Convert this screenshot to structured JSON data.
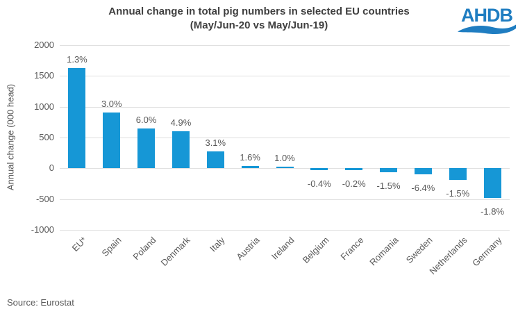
{
  "header": {
    "title_line1": "Annual change in total pig numbers in selected EU countries",
    "title_line2": "(May/Jun-20 vs May/Jun-19)",
    "logo_text": "AHDB"
  },
  "footer": {
    "source": "Source: Eurostat"
  },
  "colors": {
    "bar_blue": "#1697d6",
    "logo_blue": "#1f7dc1",
    "text_gray": "#595959",
    "title_gray": "#3f3f3f",
    "gridline_gray": "#e0e0e0"
  },
  "chart_data": {
    "type": "bar",
    "title": "Annual change in total pig numbers in selected EU countries (May/Jun-20 vs May/Jun-19)",
    "xlabel": "",
    "ylabel": "Annual change (000 head)",
    "ylim": [
      -1000,
      2000
    ],
    "yticks": [
      2000,
      1500,
      1000,
      500,
      0,
      -500,
      -1000
    ],
    "grid": true,
    "legend": false,
    "categories": [
      "EU*",
      "Spain",
      "Poland",
      "Denmark",
      "Italy",
      "Austria",
      "Ireland",
      "Belgium",
      "France",
      "Romania",
      "Sweden",
      "Netherlands",
      "Germany"
    ],
    "values": [
      1630,
      910,
      650,
      605,
      270,
      42,
      16,
      -30,
      -28,
      -65,
      -100,
      -185,
      -480
    ],
    "bar_labels": [
      "1.3%",
      "3.0%",
      "6.0%",
      "4.9%",
      "3.1%",
      "1.6%",
      "1.0%",
      "-0.4%",
      "-0.2%",
      "-1.5%",
      "-6.4%",
      "-1.5%",
      "-1.8%"
    ]
  }
}
